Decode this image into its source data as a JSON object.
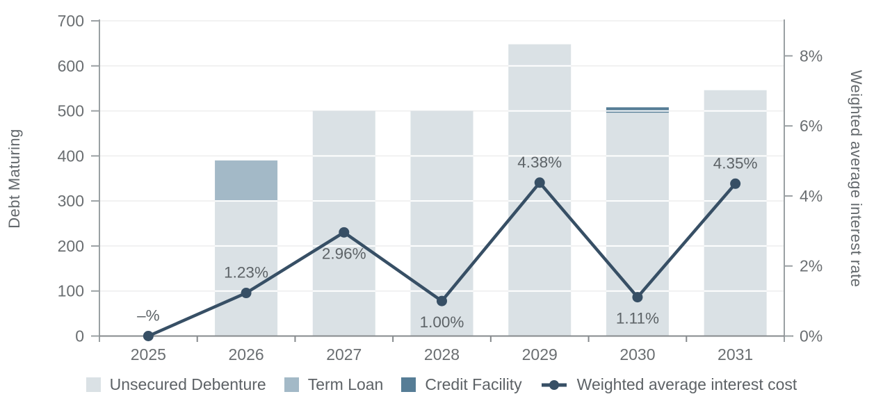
{
  "chart_data": {
    "type": "combo",
    "subtype": "stacked-bar-with-line",
    "categories": [
      "2025",
      "2026",
      "2027",
      "2028",
      "2029",
      "2030",
      "2031"
    ],
    "bar_series": [
      {
        "name": "Unsecured Debenture",
        "color": "#dae1e5",
        "values": [
          0,
          300,
          500,
          500,
          648,
          496,
          546
        ]
      },
      {
        "name": "Term Loan",
        "color": "#a3b9c7",
        "values": [
          0,
          90,
          0,
          0,
          0,
          0,
          0
        ]
      },
      {
        "name": "Credit Facility",
        "color": "#567d96",
        "values": [
          0,
          0,
          0,
          0,
          0,
          12,
          0
        ]
      }
    ],
    "line_series": {
      "name": "Weighted average interest cost",
      "color": "#374f65",
      "values": [
        0,
        1.23,
        2.96,
        1.0,
        4.38,
        1.11,
        4.35
      ],
      "labels": [
        "–%",
        "1.23%",
        "2.96%",
        "1.00%",
        "4.38%",
        "1.11%",
        "4.35%"
      ],
      "label_positions": [
        "above",
        "above",
        "below",
        "below",
        "above",
        "below",
        "above"
      ]
    },
    "left_axis": {
      "title": "Debt Maturing",
      "min": 0,
      "max": 700,
      "tick_step": 100,
      "tick_labels": [
        "0",
        "100",
        "200",
        "300",
        "400",
        "500",
        "600",
        "700"
      ]
    },
    "right_axis": {
      "title": "Weighted average interest rate",
      "min": 0,
      "max": 9,
      "tick_values": [
        0,
        2,
        4,
        6,
        8
      ],
      "tick_labels": [
        "0%",
        "2%",
        "4%",
        "6%",
        "8%"
      ]
    },
    "x_axis": {
      "tick_labels": [
        "2025",
        "2026",
        "2027",
        "2028",
        "2029",
        "2030",
        "2031"
      ]
    },
    "grid": "horizontal",
    "legend_position": "bottom"
  }
}
